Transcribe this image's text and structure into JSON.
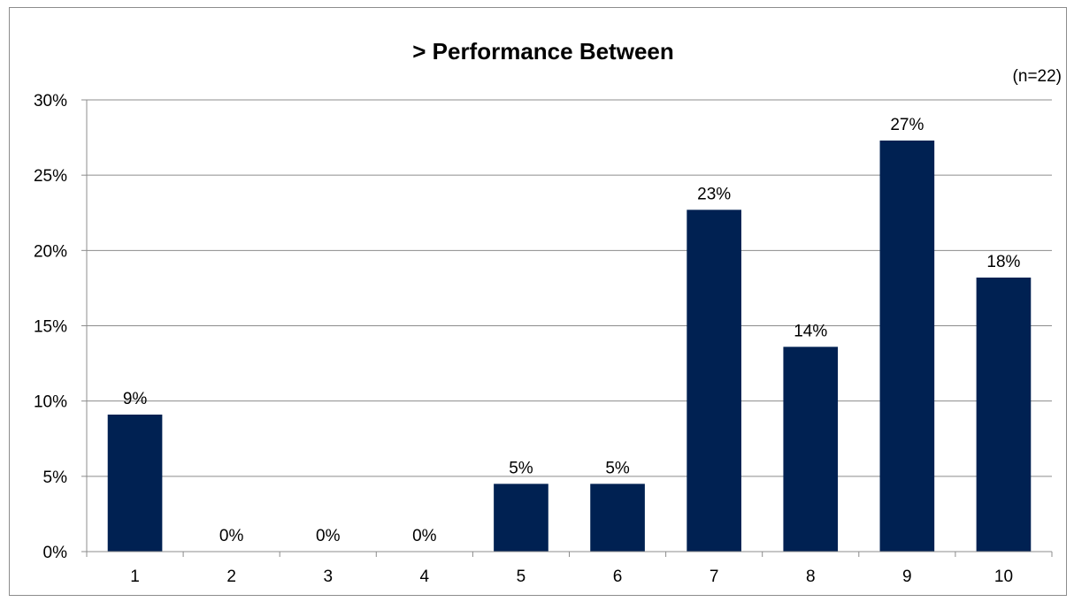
{
  "chart_data": {
    "type": "bar",
    "title": "> Performance Between",
    "note": "(n=22)",
    "xlabel": "",
    "ylabel": "",
    "categories": [
      "1",
      "2",
      "3",
      "4",
      "5",
      "6",
      "7",
      "8",
      "9",
      "10"
    ],
    "values": [
      9.1,
      0,
      0,
      0,
      4.5,
      4.5,
      22.7,
      13.6,
      27.3,
      18.2
    ],
    "data_labels": [
      "9%",
      "0%",
      "0%",
      "0%",
      "5%",
      "5%",
      "23%",
      "14%",
      "27%",
      "18%"
    ],
    "ylim": [
      0,
      30
    ],
    "y_ticks": [
      0,
      5,
      10,
      15,
      20,
      25,
      30
    ],
    "y_tick_labels": [
      "0%",
      "5%",
      "10%",
      "15%",
      "20%",
      "25%",
      "30%"
    ],
    "grid": true,
    "legend": "none",
    "bar_color": "#002152"
  }
}
